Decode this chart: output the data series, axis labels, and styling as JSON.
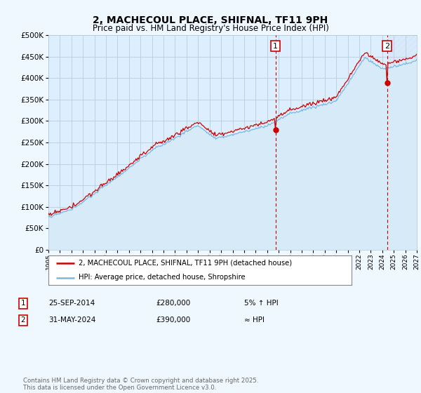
{
  "title": "2, MACHECOUL PLACE, SHIFNAL, TF11 9PH",
  "subtitle": "Price paid vs. HM Land Registry's House Price Index (HPI)",
  "ytick_values": [
    0,
    50000,
    100000,
    150000,
    200000,
    250000,
    300000,
    350000,
    400000,
    450000,
    500000
  ],
  "ylim": [
    0,
    500000
  ],
  "xlim": [
    1995,
    2027
  ],
  "xtick_years": [
    1995,
    1996,
    1997,
    1998,
    1999,
    2000,
    2001,
    2002,
    2003,
    2004,
    2005,
    2006,
    2007,
    2008,
    2009,
    2010,
    2011,
    2012,
    2013,
    2014,
    2015,
    2016,
    2017,
    2018,
    2019,
    2020,
    2021,
    2022,
    2023,
    2024,
    2025,
    2026,
    2027
  ],
  "hpi_color": "#7ab8e0",
  "hpi_fill_color": "#d6eaf8",
  "price_color": "#cc0000",
  "vline_color": "#cc0000",
  "t1_x": 2014.73,
  "t2_x": 2024.42,
  "t1_price": 280000,
  "t2_price": 390000,
  "transaction1": {
    "date": "25-SEP-2014",
    "price": "£280,000",
    "hpi_rel": "5% ↑ HPI"
  },
  "transaction2": {
    "date": "31-MAY-2024",
    "price": "£390,000",
    "hpi_rel": "≈ HPI"
  },
  "legend_line1": "2, MACHECOUL PLACE, SHIFNAL, TF11 9PH (detached house)",
  "legend_line2": "HPI: Average price, detached house, Shropshire",
  "footer": "Contains HM Land Registry data © Crown copyright and database right 2025.\nThis data is licensed under the Open Government Licence v3.0.",
  "bg_color": "#f0f8ff",
  "plot_bg_color": "#ddeeff",
  "grid_color": "#b0c8d8",
  "hatch_color": "#c0d8e8",
  "title_fontsize": 10,
  "subtitle_fontsize": 8.5
}
